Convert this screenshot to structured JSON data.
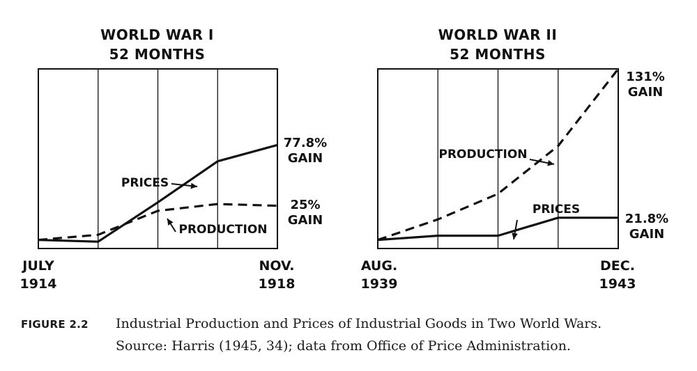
{
  "chart_data": [
    {
      "type": "line",
      "title": "WORLD WAR I",
      "subtitle": "52 MONTHS",
      "x_start_label": [
        "JULY",
        "1914"
      ],
      "x_end_label": [
        "NOV.",
        "1918"
      ],
      "grid": true,
      "series": [
        {
          "name": "PRICES",
          "style": "solid",
          "x": [
            0,
            1,
            2,
            3,
            4
          ],
          "y": [
            0,
            -1,
            22,
            46,
            55.5
          ],
          "end_label": [
            "77.8%",
            "GAIN"
          ]
        },
        {
          "name": "PRODUCTION",
          "style": "dashed",
          "x": [
            0,
            1,
            2,
            3,
            4
          ],
          "y": [
            0,
            3,
            17,
            21,
            20
          ],
          "end_label": [
            "25%",
            "GAIN"
          ]
        }
      ],
      "ylim": [
        -5,
        100
      ]
    },
    {
      "type": "line",
      "title": "WORLD WAR II",
      "subtitle": "52 MONTHS",
      "x_start_label": [
        "AUG.",
        "1939"
      ],
      "x_end_label": [
        "DEC.",
        "1943"
      ],
      "grid": true,
      "series": [
        {
          "name": "PRODUCTION",
          "style": "dashed",
          "x": [
            0,
            1,
            2,
            3,
            4
          ],
          "y": [
            0,
            12,
            27,
            55,
            100
          ],
          "end_label": [
            "131%",
            "GAIN"
          ]
        },
        {
          "name": "PRICES",
          "style": "solid",
          "x": [
            0,
            1,
            2,
            3,
            4
          ],
          "y": [
            0,
            2.5,
            2.5,
            13,
            13
          ],
          "end_label": [
            "21.8%",
            "GAIN"
          ]
        }
      ],
      "ylim": [
        -5,
        100
      ]
    }
  ],
  "caption": {
    "label": "FIGURE 2.2",
    "line1": "Industrial Production and Prices of Industrial Goods in Two World Wars.",
    "line2": "Source: Harris (1945, 34); data from Office of Price Administration."
  },
  "colors": {
    "ink": "#111111",
    "background": "#ffffff"
  }
}
